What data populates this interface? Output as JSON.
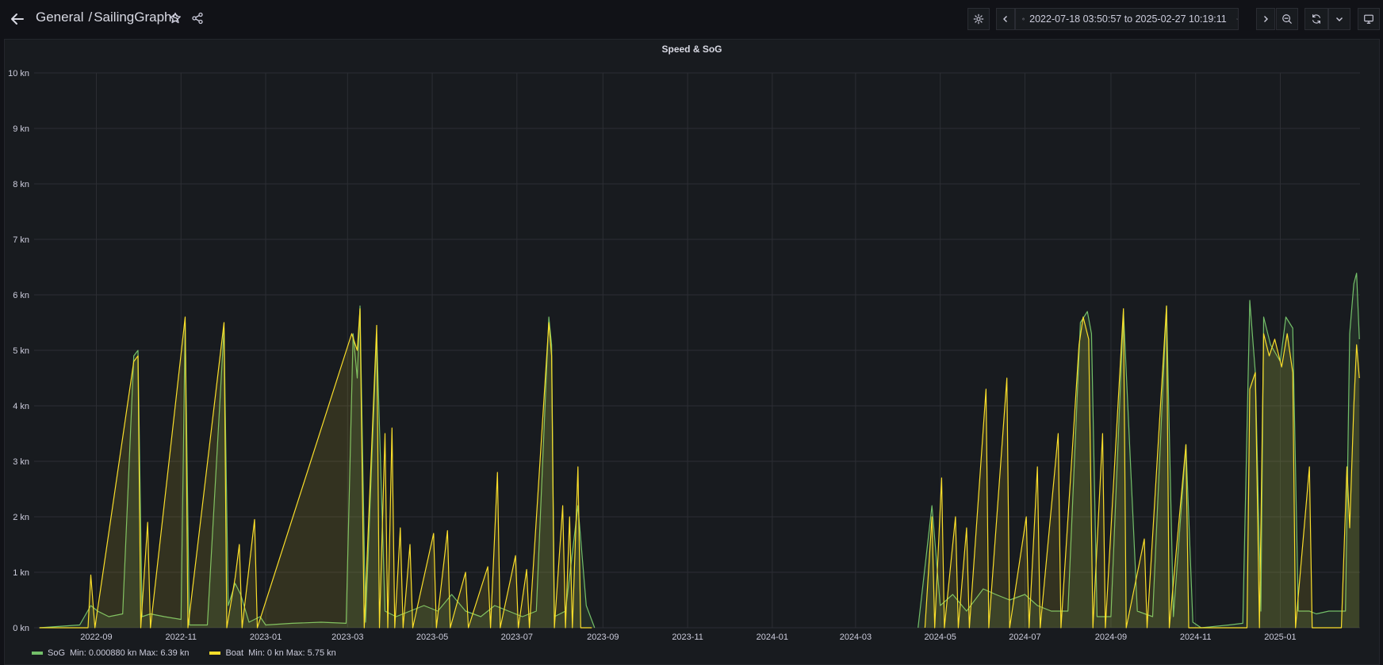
{
  "header": {
    "folder": "General",
    "separator": "/",
    "dashboard": "SailingGraphs",
    "time_range": "2022-07-18 03:50:57 to 2025-02-27 10:19:11"
  },
  "icons": {
    "back": "arrow-left-icon",
    "star": "star-icon",
    "share": "share-icon",
    "settings": "gear-icon",
    "prev": "chevron-left-icon",
    "clock": "clock-icon",
    "dropdown": "chevron-down-icon",
    "next": "chevron-right-icon",
    "zoom_out": "zoom-out-icon",
    "refresh": "refresh-icon",
    "refresh_dropdown": "chevron-down-icon",
    "tv": "monitor-icon"
  },
  "panel": {
    "title": "Speed & SoG"
  },
  "legend": [
    {
      "name": "SoG",
      "stats": "Min: 0.000880 kn  Max: 6.39 kn",
      "color": "#73bf69"
    },
    {
      "name": "Boat",
      "stats": "Min: 0 kn  Max: 5.75 kn",
      "color": "#fade2a"
    }
  ],
  "chart_data": {
    "type": "line",
    "title": "Speed & SoG",
    "unit": "kn",
    "ylim": [
      0,
      10
    ],
    "y_ticks": [
      "0 kn",
      "1 kn",
      "2 kn",
      "3 kn",
      "4 kn",
      "5 kn",
      "6 kn",
      "7 kn",
      "8 kn",
      "9 kn",
      "10 kn"
    ],
    "x_range": [
      "2022-07-18",
      "2025-02-27"
    ],
    "x_ticks": [
      "2022-09",
      "2022-11",
      "2023-01",
      "2023-03",
      "2023-05",
      "2023-07",
      "2023-09",
      "2023-11",
      "2024-01",
      "2024-03",
      "2024-05",
      "2024-07",
      "2024-09",
      "2024-11",
      "2025-01"
    ],
    "grid": true,
    "series": [
      {
        "name": "SoG",
        "color": "#73bf69",
        "points": [
          [
            "2022-07-22",
            0
          ],
          [
            "2022-08-20",
            0.05
          ],
          [
            "2022-08-28",
            0.4
          ],
          [
            "2022-09-02",
            0.3
          ],
          [
            "2022-09-10",
            0.2
          ],
          [
            "2022-09-20",
            0.25
          ],
          [
            "2022-09-28",
            4.9
          ],
          [
            "2022-10-01",
            5.0
          ],
          [
            "2022-10-04",
            0.2
          ],
          [
            "2022-10-10",
            0.25
          ],
          [
            "2022-10-20",
            0.2
          ],
          [
            "2022-11-01",
            0.15
          ],
          [
            "2022-11-04",
            5.5
          ],
          [
            "2022-11-07",
            0.05
          ],
          [
            "2022-11-20",
            0.05
          ],
          [
            "2022-12-02",
            5.4
          ],
          [
            "2022-12-05",
            0.4
          ],
          [
            "2022-12-10",
            0.8
          ],
          [
            "2022-12-14",
            0.6
          ],
          [
            "2022-12-20",
            0.1
          ],
          [
            "2022-12-28",
            0.2
          ],
          [
            "2023-01-01",
            0.05
          ],
          [
            "2023-01-20",
            0.08
          ],
          [
            "2023-02-10",
            0.1
          ],
          [
            "2023-02-28",
            0.08
          ],
          [
            "2023-03-05",
            5.3
          ],
          [
            "2023-03-08",
            4.5
          ],
          [
            "2023-03-10",
            5.8
          ],
          [
            "2023-03-14",
            0.1
          ],
          [
            "2023-03-22",
            5.3
          ],
          [
            "2023-03-28",
            0.3
          ],
          [
            "2023-04-05",
            0.2
          ],
          [
            "2023-04-15",
            0.3
          ],
          [
            "2023-04-25",
            0.4
          ],
          [
            "2023-05-05",
            0.3
          ],
          [
            "2023-05-15",
            0.6
          ],
          [
            "2023-05-25",
            0.3
          ],
          [
            "2023-06-05",
            0.2
          ],
          [
            "2023-06-15",
            0.4
          ],
          [
            "2023-06-25",
            0.3
          ],
          [
            "2023-07-05",
            0.2
          ],
          [
            "2023-07-15",
            0.3
          ],
          [
            "2023-07-24",
            5.6
          ],
          [
            "2023-07-26",
            5.1
          ],
          [
            "2023-07-28",
            0.2
          ],
          [
            "2023-08-05",
            0.3
          ],
          [
            "2023-08-14",
            2.2
          ],
          [
            "2023-08-20",
            0.4
          ],
          [
            "2023-08-26",
            0
          ],
          [
            "2024-04-15",
            0
          ],
          [
            "2024-04-25",
            2.2
          ],
          [
            "2024-05-01",
            0.4
          ],
          [
            "2024-05-10",
            0.6
          ],
          [
            "2024-05-20",
            0.3
          ],
          [
            "2024-06-01",
            0.7
          ],
          [
            "2024-06-10",
            0.6
          ],
          [
            "2024-06-20",
            0.5
          ],
          [
            "2024-07-01",
            0.6
          ],
          [
            "2024-07-10",
            0.4
          ],
          [
            "2024-07-20",
            0.3
          ],
          [
            "2024-08-01",
            0.3
          ],
          [
            "2024-08-10",
            5.5
          ],
          [
            "2024-08-15",
            5.7
          ],
          [
            "2024-08-18",
            5.3
          ],
          [
            "2024-08-22",
            0.2
          ],
          [
            "2024-09-01",
            0.2
          ],
          [
            "2024-09-10",
            5.7
          ],
          [
            "2024-09-20",
            0.3
          ],
          [
            "2024-10-01",
            0.2
          ],
          [
            "2024-10-11",
            5.8
          ],
          [
            "2024-10-16",
            0.2
          ],
          [
            "2024-10-25",
            3.3
          ],
          [
            "2024-10-30",
            0.1
          ],
          [
            "2024-11-05",
            0
          ],
          [
            "2024-11-25",
            0.05
          ],
          [
            "2024-12-05",
            0.08
          ],
          [
            "2024-12-10",
            5.9
          ],
          [
            "2024-12-14",
            4.6
          ],
          [
            "2024-12-18",
            0.3
          ],
          [
            "2024-12-20",
            5.6
          ],
          [
            "2024-12-25",
            5.1
          ],
          [
            "2025-01-01",
            4.8
          ],
          [
            "2025-01-05",
            5.6
          ],
          [
            "2025-01-10",
            5.4
          ],
          [
            "2025-01-14",
            0.3
          ],
          [
            "2025-01-22",
            0.3
          ],
          [
            "2025-01-27",
            0.25
          ],
          [
            "2025-02-05",
            0.3
          ],
          [
            "2025-02-12",
            0.3
          ],
          [
            "2025-02-17",
            0.3
          ],
          [
            "2025-02-20",
            5.3
          ],
          [
            "2025-02-23",
            6.2
          ],
          [
            "2025-02-25",
            6.39
          ],
          [
            "2025-02-27",
            5.2
          ]
        ]
      },
      {
        "name": "Boat",
        "color": "#fade2a",
        "points": [
          [
            "2022-07-22",
            0
          ],
          [
            "2022-08-26",
            0
          ],
          [
            "2022-08-28",
            0.95
          ],
          [
            "2022-08-31",
            0
          ],
          [
            "2022-09-28",
            4.8
          ],
          [
            "2022-10-01",
            4.9
          ],
          [
            "2022-10-03",
            0
          ],
          [
            "2022-10-08",
            1.9
          ],
          [
            "2022-10-10",
            0
          ],
          [
            "2022-11-04",
            5.6
          ],
          [
            "2022-11-06",
            0
          ],
          [
            "2022-12-02",
            5.5
          ],
          [
            "2022-12-04",
            0
          ],
          [
            "2022-12-10",
            0.9
          ],
          [
            "2022-12-13",
            1.5
          ],
          [
            "2022-12-15",
            0
          ],
          [
            "2022-12-24",
            1.95
          ],
          [
            "2022-12-26",
            0
          ],
          [
            "2023-03-04",
            5.3
          ],
          [
            "2023-03-08",
            5.0
          ],
          [
            "2023-03-10",
            5.75
          ],
          [
            "2023-03-13",
            0
          ],
          [
            "2023-03-22",
            5.45
          ],
          [
            "2023-03-24",
            0
          ],
          [
            "2023-03-28",
            3.5
          ],
          [
            "2023-03-30",
            0
          ],
          [
            "2023-04-02",
            3.6
          ],
          [
            "2023-04-04",
            0
          ],
          [
            "2023-04-08",
            1.8
          ],
          [
            "2023-04-10",
            0
          ],
          [
            "2023-04-15",
            1.5
          ],
          [
            "2023-04-17",
            0
          ],
          [
            "2023-05-02",
            1.7
          ],
          [
            "2023-05-04",
            0
          ],
          [
            "2023-05-12",
            1.75
          ],
          [
            "2023-05-14",
            0
          ],
          [
            "2023-05-25",
            1.0
          ],
          [
            "2023-05-27",
            0
          ],
          [
            "2023-06-10",
            1.1
          ],
          [
            "2023-06-12",
            0
          ],
          [
            "2023-06-17",
            2.8
          ],
          [
            "2023-06-19",
            0
          ],
          [
            "2023-06-30",
            1.3
          ],
          [
            "2023-07-02",
            0
          ],
          [
            "2023-07-08",
            1.05
          ],
          [
            "2023-07-10",
            0
          ],
          [
            "2023-07-24",
            5.5
          ],
          [
            "2023-07-26",
            4.9
          ],
          [
            "2023-07-28",
            0
          ],
          [
            "2023-08-03",
            2.2
          ],
          [
            "2023-08-05",
            0
          ],
          [
            "2023-08-08",
            2.0
          ],
          [
            "2023-08-10",
            0
          ],
          [
            "2023-08-14",
            2.9
          ],
          [
            "2023-08-16",
            0
          ],
          [
            "2023-08-24",
            0
          ],
          [
            "2024-04-20",
            0
          ],
          [
            "2024-04-25",
            2.0
          ],
          [
            "2024-04-27",
            0
          ],
          [
            "2024-05-02",
            2.7
          ],
          [
            "2024-05-04",
            0
          ],
          [
            "2024-05-12",
            2.0
          ],
          [
            "2024-05-14",
            0
          ],
          [
            "2024-05-20",
            1.8
          ],
          [
            "2024-05-22",
            0
          ],
          [
            "2024-06-03",
            4.3
          ],
          [
            "2024-06-05",
            0
          ],
          [
            "2024-06-18",
            4.5
          ],
          [
            "2024-06-20",
            0
          ],
          [
            "2024-07-02",
            2.0
          ],
          [
            "2024-07-04",
            0
          ],
          [
            "2024-07-10",
            2.9
          ],
          [
            "2024-07-12",
            0
          ],
          [
            "2024-07-25",
            3.5
          ],
          [
            "2024-07-27",
            0
          ],
          [
            "2024-08-09",
            5.1
          ],
          [
            "2024-08-12",
            5.6
          ],
          [
            "2024-08-16",
            5.2
          ],
          [
            "2024-08-19",
            0
          ],
          [
            "2024-08-26",
            3.5
          ],
          [
            "2024-08-28",
            0
          ],
          [
            "2024-09-10",
            5.75
          ],
          [
            "2024-09-12",
            0
          ],
          [
            "2024-09-25",
            1.6
          ],
          [
            "2024-09-27",
            0
          ],
          [
            "2024-10-11",
            5.8
          ],
          [
            "2024-10-13",
            0
          ],
          [
            "2024-10-25",
            3.3
          ],
          [
            "2024-10-27",
            0
          ],
          [
            "2024-12-08",
            0
          ],
          [
            "2024-12-10",
            4.3
          ],
          [
            "2024-12-14",
            4.6
          ],
          [
            "2024-12-17",
            0
          ],
          [
            "2024-12-20",
            5.3
          ],
          [
            "2024-12-24",
            4.9
          ],
          [
            "2024-12-28",
            5.2
          ],
          [
            "2025-01-02",
            4.7
          ],
          [
            "2025-01-06",
            5.3
          ],
          [
            "2025-01-10",
            4.6
          ],
          [
            "2025-01-12",
            0
          ],
          [
            "2025-01-22",
            2.9
          ],
          [
            "2025-01-24",
            0
          ],
          [
            "2025-02-14",
            0
          ],
          [
            "2025-02-18",
            2.9
          ],
          [
            "2025-02-20",
            1.8
          ],
          [
            "2025-02-23",
            4.0
          ],
          [
            "2025-02-25",
            5.1
          ],
          [
            "2025-02-27",
            4.5
          ]
        ]
      }
    ]
  }
}
